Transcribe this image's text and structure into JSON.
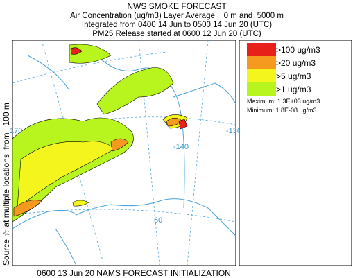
{
  "header": {
    "title": "NWS SMOKE FORECAST",
    "lines": [
      "Air Concentration (ug/m3) Layer Average    0 m and  5000 m",
      "Integrated from 0400 14 Jun to 0500 14 Jun 20 (UTC)",
      "PM25 Release started at 0600 12 Jun 20 (UTC)"
    ]
  },
  "side_label": "Source ☆ at multiple locations  from   100 m",
  "legend": {
    "items": [
      {
        "label": ">100 ug/m3",
        "color": "#e8201a"
      },
      {
        "label": ">20 ug/m3",
        "color": "#f59a1e"
      },
      {
        "label": ">5 ug/m3",
        "color": "#f5f51e"
      },
      {
        "label": ">1 ug/m3",
        "color": "#b8f51e"
      }
    ],
    "maximum": "Maximum: 1.3E+03 ug/m3",
    "minimum": "Minimum: 1.8E-08 ug/m3"
  },
  "map_labels": [
    "170",
    "-140",
    "-130",
    "60"
  ],
  "footer": "0600 13 Jun 20 NAMS FORECAST INITIALIZATION"
}
